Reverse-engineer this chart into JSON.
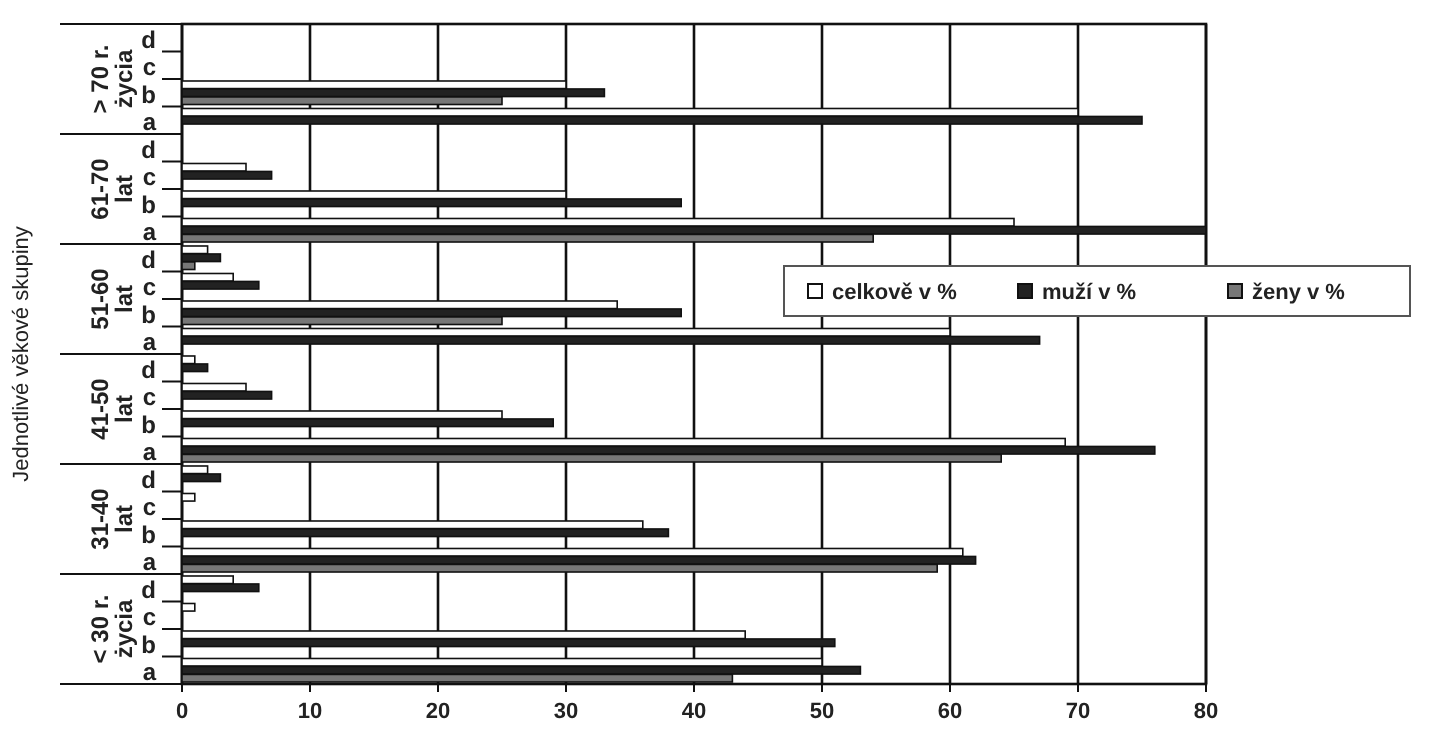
{
  "chart_data": {
    "type": "bar",
    "orientation": "horizontal",
    "ylabel": "Jednotlivé věkové skupiny",
    "categories": [
      "d",
      "c",
      "b",
      "a",
      "d",
      "c",
      "b",
      "a",
      "d",
      "c",
      "b",
      "a",
      "d",
      "c",
      "b",
      "a",
      "d",
      "c",
      "b",
      "a",
      "d",
      "c",
      "b",
      "a"
    ],
    "annotations": [
      "> 70 r. życia",
      "61-70 lat",
      "51-60 lat",
      "41-50 lat",
      "31-40 lat",
      "< 30 r. życia"
    ],
    "series": [
      {
        "name": "celkově v %",
        "color": "#ffffff",
        "values": [
          null,
          null,
          30,
          70,
          null,
          5,
          30,
          65,
          2,
          4,
          34,
          60,
          1,
          5,
          25,
          69,
          2,
          1,
          36,
          61,
          4,
          1,
          44,
          50
        ]
      },
      {
        "name": "muží v %",
        "color": "#222222",
        "values": [
          null,
          null,
          33,
          75,
          null,
          7,
          39,
          80,
          3,
          6,
          39,
          67,
          2,
          7,
          29,
          76,
          3,
          null,
          38,
          62,
          6,
          null,
          51,
          53
        ]
      },
      {
        "name": "ženy v %",
        "color": "#777777",
        "values": [
          null,
          null,
          25,
          null,
          null,
          null,
          null,
          54,
          1,
          null,
          25,
          null,
          null,
          null,
          null,
          64,
          null,
          null,
          null,
          59,
          null,
          null,
          null,
          43
        ]
      }
    ],
    "xlim": [
      0,
      80
    ],
    "xticks": [
      0,
      10,
      20,
      30,
      40,
      50,
      60,
      70,
      80
    ],
    "grid": "x",
    "legend": "right"
  }
}
